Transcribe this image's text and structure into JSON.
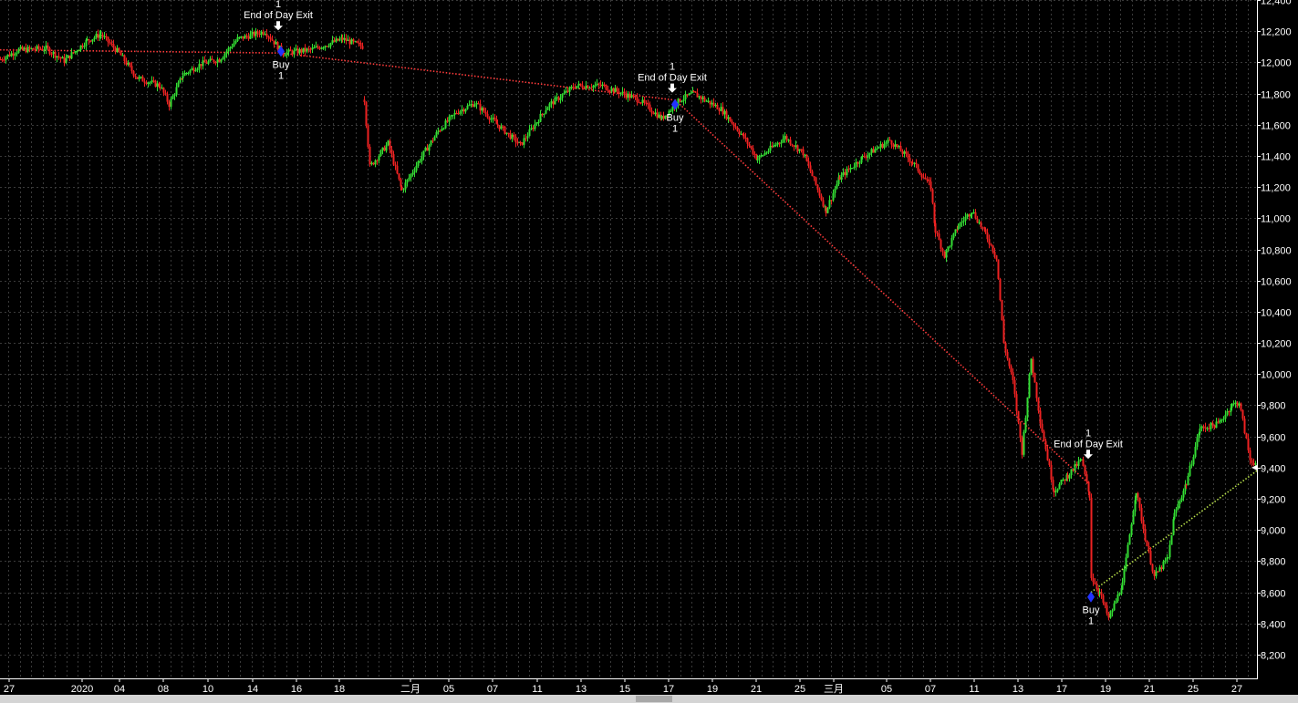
{
  "chart_data": {
    "type": "candlestick",
    "title": "",
    "xlabel": "",
    "ylabel": "",
    "ylim": [
      8100,
      12500
    ],
    "y_ticks": [
      8200,
      8400,
      8600,
      8800,
      9000,
      9200,
      9400,
      9600,
      9800,
      10000,
      10200,
      10400,
      10600,
      10800,
      11000,
      11200,
      11400,
      11600,
      11800,
      12000,
      12200,
      12400
    ],
    "y_tick_labels": [
      "8,200",
      "8,400",
      "8,600",
      "8,800",
      "9,000",
      "9,200",
      "9,400",
      "9,600",
      "9,800",
      "10,000",
      "10,200",
      "10,400",
      "10,600",
      "10,800",
      "11,000",
      "11,200",
      "11,400",
      "11,600",
      "11,800",
      "12,000",
      "12,200",
      "12,400"
    ],
    "x_tick_labels": [
      "27",
      "2020",
      "04",
      "08",
      "10",
      "14",
      "16",
      "18",
      "二月",
      "05",
      "07",
      "11",
      "13",
      "15",
      "17",
      "19",
      "21",
      "25",
      "三月",
      "05",
      "07",
      "11",
      "13",
      "17",
      "19",
      "21",
      "25",
      "27"
    ],
    "grid": true,
    "colors": {
      "up": "#33dd33",
      "down": "#ee2222",
      "grid": "#3a3a3a",
      "exit_line": "#ff3b3b",
      "open_line": "#b8e04a",
      "marker": "#2233ff",
      "background": "#000000"
    },
    "price_path": [
      [
        0,
        12020
      ],
      [
        20,
        12080
      ],
      [
        50,
        12090
      ],
      [
        70,
        12010
      ],
      [
        95,
        12140
      ],
      [
        110,
        12180
      ],
      [
        130,
        12060
      ],
      [
        150,
        11900
      ],
      [
        175,
        11850
      ],
      [
        185,
        11730
      ],
      [
        200,
        11920
      ],
      [
        220,
        11990
      ],
      [
        240,
        12020
      ],
      [
        260,
        12150
      ],
      [
        290,
        12200
      ],
      [
        310,
        12060
      ],
      [
        340,
        12080
      ],
      [
        375,
        12150
      ],
      [
        398,
        12100
      ],
      [
        399,
        11760
      ],
      [
        405,
        11330
      ],
      [
        425,
        11480
      ],
      [
        440,
        11180
      ],
      [
        460,
        11380
      ],
      [
        480,
        11560
      ],
      [
        500,
        11680
      ],
      [
        520,
        11740
      ],
      [
        545,
        11600
      ],
      [
        570,
        11470
      ],
      [
        600,
        11720
      ],
      [
        630,
        11850
      ],
      [
        660,
        11850
      ],
      [
        700,
        11760
      ],
      [
        725,
        11640
      ],
      [
        745,
        11760
      ],
      [
        760,
        11800
      ],
      [
        790,
        11700
      ],
      [
        815,
        11520
      ],
      [
        830,
        11380
      ],
      [
        860,
        11520
      ],
      [
        880,
        11420
      ],
      [
        905,
        11050
      ],
      [
        920,
        11260
      ],
      [
        945,
        11390
      ],
      [
        975,
        11500
      ],
      [
        1000,
        11360
      ],
      [
        1020,
        11200
      ],
      [
        1025,
        10920
      ],
      [
        1035,
        10760
      ],
      [
        1050,
        10950
      ],
      [
        1065,
        11050
      ],
      [
        1080,
        10900
      ],
      [
        1092,
        10750
      ],
      [
        1100,
        10200
      ],
      [
        1110,
        9950
      ],
      [
        1120,
        9500
      ],
      [
        1130,
        10100
      ],
      [
        1140,
        9700
      ],
      [
        1155,
        9250
      ],
      [
        1170,
        9350
      ],
      [
        1185,
        9450
      ],
      [
        1194,
        9220
      ],
      [
        1196,
        8700
      ],
      [
        1205,
        8600
      ],
      [
        1215,
        8430
      ],
      [
        1230,
        8650
      ],
      [
        1245,
        9250
      ],
      [
        1255,
        8950
      ],
      [
        1265,
        8700
      ],
      [
        1280,
        8820
      ],
      [
        1287,
        9100
      ],
      [
        1300,
        9300
      ],
      [
        1315,
        9650
      ],
      [
        1335,
        9680
      ],
      [
        1350,
        9800
      ],
      [
        1358,
        9820
      ],
      [
        1370,
        9450
      ],
      [
        1378,
        9420
      ]
    ]
  },
  "trades": [
    {
      "entry_label": "Buy",
      "entry_qty": "1",
      "entry_x": 308,
      "entry_price": 12070,
      "exit_label": "End of Day Exit",
      "exit_qty": "1",
      "exit_x": 305,
      "exit_price": 12200
    },
    {
      "entry_label": "Buy",
      "entry_qty": "1",
      "entry_x": 740,
      "entry_price": 11730,
      "exit_label": "End of Day Exit",
      "exit_qty": "1",
      "exit_x": 737,
      "exit_price": 11800
    },
    {
      "entry_label": "Buy",
      "entry_qty": "1",
      "entry_x": 1196,
      "entry_price": 8570,
      "exit_label": "End of Day Exit",
      "exit_qty": "1",
      "exit_x": 1193,
      "exit_price": 9450
    }
  ],
  "trade_lines": [
    {
      "type": "closed",
      "from_x": 0,
      "from_price": 12080,
      "to_x": 305,
      "to_price": 12060
    },
    {
      "type": "closed",
      "from_x": 308,
      "from_price": 12060,
      "to_x": 737,
      "to_price": 11760
    },
    {
      "type": "closed",
      "from_x": 740,
      "from_price": 11760,
      "to_x": 1193,
      "to_price": 9300
    },
    {
      "type": "open",
      "from_x": 1196,
      "from_price": 8600,
      "to_x": 1378,
      "to_price": 9380
    }
  ],
  "last_price": {
    "label": "9,400",
    "price": 9400
  }
}
